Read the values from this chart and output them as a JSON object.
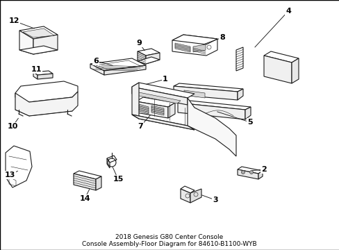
{
  "title_line1": "2018 Genesis G80 Center Console",
  "title_line2": "Console Assembly-Floor Diagram for 84610-B1100-WYB",
  "title_fontsize": 6.5,
  "background_color": "#ffffff",
  "border_color": "#000000",
  "fig_width": 4.89,
  "fig_height": 3.6,
  "line_color": "#1a1a1a",
  "label_fontsize": 8
}
